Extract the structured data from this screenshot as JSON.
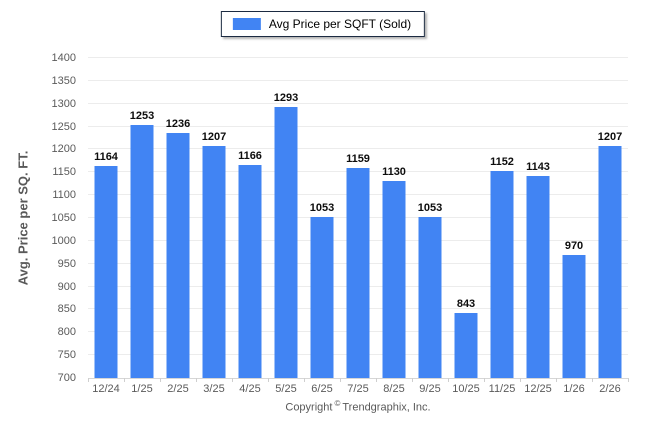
{
  "legend": {
    "label": "Avg Price per SQFT (Sold)",
    "swatch_color": "#4184f3",
    "border_color": "#1b2a41"
  },
  "chart_data": {
    "type": "bar",
    "title": "",
    "categories": [
      "12/24",
      "1/25",
      "2/25",
      "3/25",
      "4/25",
      "5/25",
      "6/25",
      "7/25",
      "8/25",
      "9/25",
      "10/25",
      "11/25",
      "12/25",
      "1/26",
      "2/26"
    ],
    "values": [
      1164,
      1253,
      1236,
      1207,
      1166,
      1293,
      1053,
      1159,
      1130,
      1053,
      843,
      1152,
      1143,
      970,
      1207
    ],
    "series": [
      {
        "name": "Avg Price per SQFT (Sold)",
        "values": [
          1164,
          1253,
          1236,
          1207,
          1166,
          1293,
          1053,
          1159,
          1130,
          1053,
          843,
          1152,
          1143,
          970,
          1207
        ]
      }
    ],
    "xlabel": "",
    "ylabel": "Avg. Price per SQ. FT.",
    "ylim": [
      700,
      1400
    ],
    "ytick_step": 50,
    "grid": true,
    "legend_position": "top-center",
    "bar_color": "#4184f3",
    "grid_color": "#ececec"
  },
  "footer": {
    "copyright_prefix": "Copyright",
    "copyright_symbol": "©",
    "copyright_suffix": "Trendgraphix, Inc."
  }
}
